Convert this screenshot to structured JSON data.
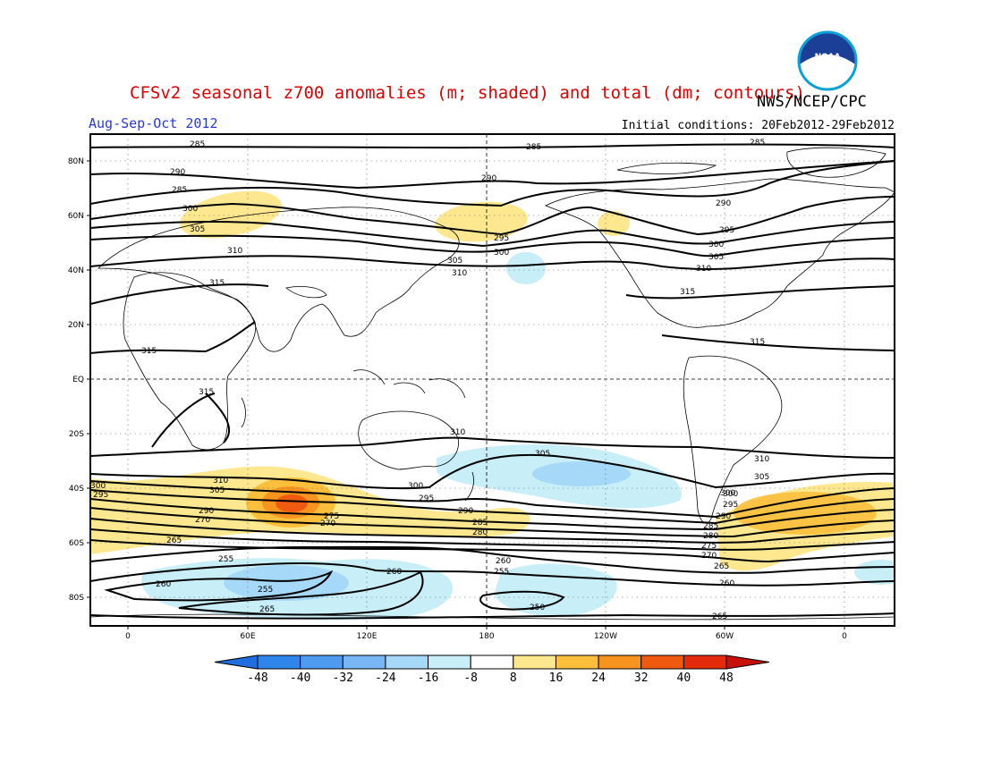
{
  "title": "CFSv2 seasonal z700 anomalies (m; shaded) and total (dm; contours)",
  "agency": "NWS/NCEP/CPC",
  "logo_text": "NOAA",
  "season": "Aug-Sep-Oct 2012",
  "initial_conditions": "Initial conditions: 20Feb2012-29Feb2012",
  "lat_labels": [
    "80N",
    "60N",
    "40N",
    "20N",
    "EQ",
    "20S",
    "40S",
    "60S",
    "80S"
  ],
  "lon_labels": [
    "0",
    "60E",
    "120E",
    "180",
    "120W",
    "60W",
    "0"
  ],
  "colorbar": {
    "labels": [
      "-48",
      "-40",
      "-32",
      "-24",
      "-16",
      "-8",
      "8",
      "16",
      "24",
      "32",
      "40",
      "48"
    ],
    "colors": [
      "#1f6fe0",
      "#2e86ea",
      "#4d9cf0",
      "#78b6f5",
      "#a6d8f7",
      "#c8eef8",
      "#ffffff",
      "#fde890",
      "#fbbf3c",
      "#f79420",
      "#f05a10",
      "#e32a0a",
      "#c80f0a"
    ]
  },
  "contour_labels": [
    "285",
    "285",
    "285",
    "290",
    "290",
    "290",
    "285",
    "300",
    "305",
    "310",
    "315",
    "295",
    "300",
    "305",
    "310",
    "315",
    "315",
    "295",
    "300",
    "305",
    "310",
    "315",
    "315",
    "310",
    "305",
    "310",
    "310",
    "305",
    "300",
    "295",
    "300",
    "305",
    "300",
    "295",
    "290",
    "285",
    "280",
    "290",
    "270",
    "265",
    "260",
    "255",
    "260",
    "255",
    "260",
    "265",
    "250",
    "255",
    "300",
    "295",
    "290",
    "285",
    "280",
    "275",
    "270",
    "265",
    "260",
    "275",
    "270",
    "265"
  ]
}
